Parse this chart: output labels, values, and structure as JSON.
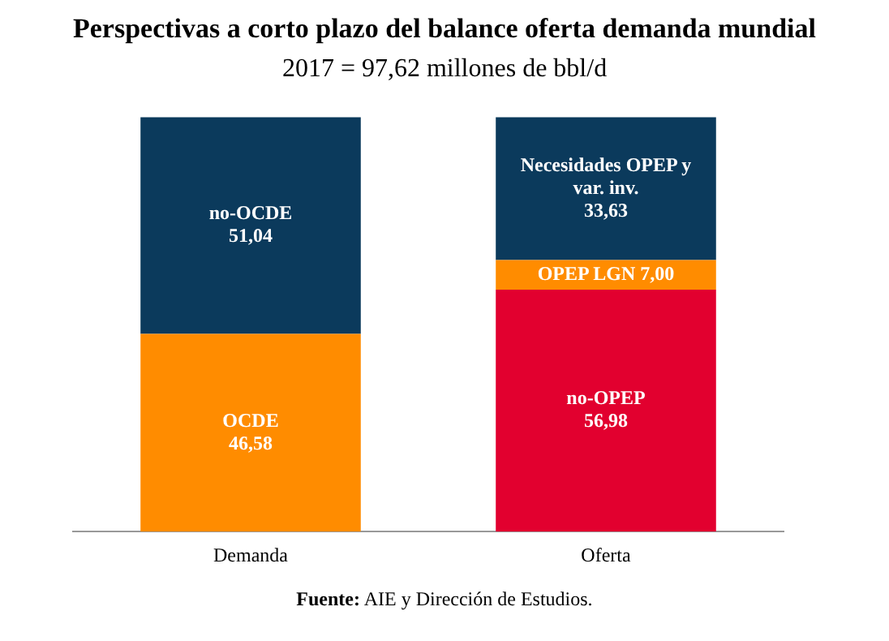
{
  "chart_data": {
    "type": "bar",
    "title": "Perspectivas a corto plazo del balance oferta demanda mundial",
    "subtitle": "2017 = 97,62 millones  de bbl/d",
    "categories": [
      "Demanda",
      "Oferta"
    ],
    "stacked": true,
    "legend": false,
    "grid": false,
    "series": [
      {
        "name": "OCDE",
        "color": "#ff8c00",
        "values": [
          46.58,
          null
        ],
        "value_labels": [
          "46,58",
          null
        ]
      },
      {
        "name": "no-OCDE",
        "color": "#0b3a5c",
        "values": [
          51.04,
          null
        ],
        "value_labels": [
          "51,04",
          null
        ]
      },
      {
        "name": "no-OPEP",
        "color": "#e2002f",
        "values": [
          null,
          56.98
        ],
        "value_labels": [
          null,
          "56,98"
        ]
      },
      {
        "name": "OPEP LGN",
        "color": "#ff8c00",
        "values": [
          null,
          7.0
        ],
        "value_labels": [
          null,
          "7,00"
        ]
      },
      {
        "name": "Necesidades OPEP y var. inv.",
        "color": "#0b3a5c",
        "values": [
          null,
          33.63
        ],
        "value_labels": [
          null,
          "33,63"
        ]
      }
    ],
    "annotations": [
      "Fuente: AIE y Dirección de Estudios."
    ]
  }
}
